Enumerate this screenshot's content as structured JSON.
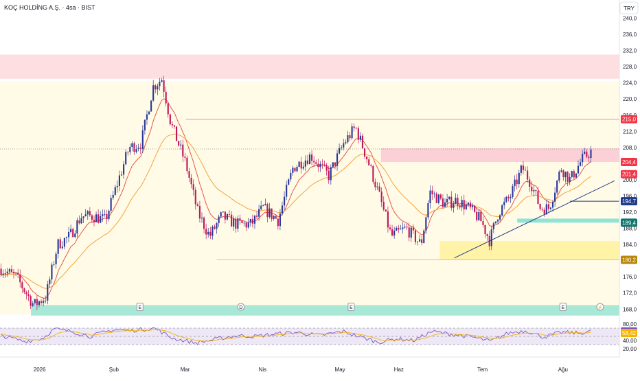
{
  "header": {
    "title": "KOÇ HOLDİNG A.Ş. · 4sa · BIST",
    "currency": "TRY"
  },
  "chart_data": {
    "type": "candlestick",
    "ylim": [
      166.0,
      242.0
    ],
    "y_ticks": [
      240,
      236,
      232,
      228,
      224,
      220,
      216,
      212,
      208,
      200,
      196,
      192,
      188,
      184,
      176,
      172,
      168
    ],
    "y_tick_labels": [
      "240,0",
      "236,0",
      "232,0",
      "228,0",
      "224,0",
      "220,0",
      "216,0",
      "212,0",
      "208,0",
      "200,0",
      "196,0",
      "192,0",
      "188,0",
      "184,0",
      "176,0",
      "172,0",
      "168,0"
    ],
    "x_ticks": [
      {
        "label": "2026",
        "t": 0.075
      },
      {
        "label": "Şub",
        "t": 0.195
      },
      {
        "label": "Mar",
        "t": 0.31
      },
      {
        "label": "Nis",
        "t": 0.435
      },
      {
        "label": "May",
        "t": 0.56
      },
      {
        "label": "Haz",
        "t": 0.655
      },
      {
        "label": "Tem",
        "t": 0.79
      },
      {
        "label": "Ağu",
        "t": 0.92
      }
    ],
    "price_labels": [
      {
        "value": "215,0",
        "price": 215.0,
        "color": "#f23645"
      },
      {
        "value": "204,4",
        "price": 204.4,
        "color": "#f23645"
      },
      {
        "value": "201,4",
        "price": 201.4,
        "color": "#f23645"
      },
      {
        "value": "194,7",
        "price": 194.7,
        "color": "#1e3a8a"
      },
      {
        "value": "189,4",
        "price": 189.4,
        "color": "#0f766e"
      },
      {
        "value": "180,2",
        "price": 180.2,
        "color": "#b8860b"
      }
    ],
    "zones": [
      {
        "kind": "resistance",
        "from": 225.0,
        "to": 231.0,
        "color": "#fddfe2",
        "t0": 0.0
      },
      {
        "kind": "resistance",
        "from": 204.4,
        "to": 207.8,
        "color": "#fbd0d6",
        "t0": 0.615
      },
      {
        "kind": "support",
        "from": 189.4,
        "to": 190.4,
        "color": "#90e4d6",
        "t0": 0.835
      },
      {
        "kind": "support",
        "from": 180.2,
        "to": 184.8,
        "color": "#fff3a8",
        "t0": 0.71
      },
      {
        "kind": "support",
        "from": 166.4,
        "to": 169.0,
        "color": "#a8e8d6",
        "t0": 0.05
      }
    ],
    "levels": [
      {
        "price": 215.0,
        "t0": 0.3,
        "color": "#f28b96"
      },
      {
        "price": 194.7,
        "t0": 0.92,
        "color": "#1e3a8a"
      },
      {
        "price": 180.2,
        "t0": 0.35,
        "color": "#e5c46a"
      }
    ],
    "trendlines": [
      {
        "t0": 0.8,
        "p0": 181.0,
        "t1": 1.02,
        "p1": 201.8,
        "color": "#1e3a8a"
      }
    ],
    "event_markers": [
      {
        "t": 0.247,
        "label": "E",
        "shape": "square"
      },
      {
        "t": 0.41,
        "label": "D",
        "shape": "circle"
      },
      {
        "t": 0.588,
        "label": "E",
        "shape": "square"
      },
      {
        "t": 0.93,
        "label": "E",
        "shape": "square"
      },
      {
        "t": 0.99,
        "label": "⚡",
        "shape": "circle"
      }
    ],
    "keypoints": [
      {
        "t": 0.0,
        "p": 178
      },
      {
        "t": 0.025,
        "p": 176
      },
      {
        "t": 0.055,
        "p": 169
      },
      {
        "t": 0.075,
        "p": 171
      },
      {
        "t": 0.095,
        "p": 184
      },
      {
        "t": 0.115,
        "p": 186
      },
      {
        "t": 0.135,
        "p": 191
      },
      {
        "t": 0.155,
        "p": 191
      },
      {
        "t": 0.175,
        "p": 190
      },
      {
        "t": 0.195,
        "p": 199
      },
      {
        "t": 0.215,
        "p": 208
      },
      {
        "t": 0.235,
        "p": 209
      },
      {
        "t": 0.255,
        "p": 223
      },
      {
        "t": 0.27,
        "p": 225
      },
      {
        "t": 0.285,
        "p": 214
      },
      {
        "t": 0.31,
        "p": 204
      },
      {
        "t": 0.33,
        "p": 192
      },
      {
        "t": 0.35,
        "p": 186
      },
      {
        "t": 0.37,
        "p": 191
      },
      {
        "t": 0.395,
        "p": 189
      },
      {
        "t": 0.42,
        "p": 189
      },
      {
        "t": 0.44,
        "p": 193
      },
      {
        "t": 0.465,
        "p": 190
      },
      {
        "t": 0.49,
        "p": 203
      },
      {
        "t": 0.52,
        "p": 206
      },
      {
        "t": 0.55,
        "p": 201
      },
      {
        "t": 0.575,
        "p": 209
      },
      {
        "t": 0.595,
        "p": 213
      },
      {
        "t": 0.615,
        "p": 205
      },
      {
        "t": 0.635,
        "p": 196
      },
      {
        "t": 0.655,
        "p": 186
      },
      {
        "t": 0.68,
        "p": 188
      },
      {
        "t": 0.705,
        "p": 184
      },
      {
        "t": 0.72,
        "p": 197
      },
      {
        "t": 0.745,
        "p": 194
      },
      {
        "t": 0.765,
        "p": 195
      },
      {
        "t": 0.785,
        "p": 193
      },
      {
        "t": 0.805,
        "p": 190
      },
      {
        "t": 0.82,
        "p": 185
      },
      {
        "t": 0.835,
        "p": 192
      },
      {
        "t": 0.855,
        "p": 196
      },
      {
        "t": 0.875,
        "p": 203
      },
      {
        "t": 0.89,
        "p": 199
      },
      {
        "t": 0.905,
        "p": 193
      },
      {
        "t": 0.92,
        "p": 193
      },
      {
        "t": 0.94,
        "p": 203
      },
      {
        "t": 0.955,
        "p": 200
      },
      {
        "t": 0.975,
        "p": 205
      },
      {
        "t": 0.99,
        "p": 207
      }
    ],
    "rsi": {
      "ylim": [
        0,
        100
      ],
      "y_ticks": [
        80,
        60,
        40,
        20
      ],
      "y_tick_labels": [
        "80,00",
        "60,00",
        "40,00",
        "20,00"
      ],
      "band": [
        30,
        70
      ],
      "values": [
        {
          "value": "62,05",
          "level": 62.05,
          "color": "#7e57c2"
        },
        {
          "value": "58,42",
          "level": 58.42,
          "color": "#f4b400"
        }
      ],
      "keypoints": [
        {
          "t": 0.0,
          "v": 52
        },
        {
          "t": 0.04,
          "v": 38
        },
        {
          "t": 0.07,
          "v": 45
        },
        {
          "t": 0.09,
          "v": 68
        },
        {
          "t": 0.12,
          "v": 62
        },
        {
          "t": 0.15,
          "v": 50
        },
        {
          "t": 0.19,
          "v": 66
        },
        {
          "t": 0.22,
          "v": 64
        },
        {
          "t": 0.26,
          "v": 70
        },
        {
          "t": 0.29,
          "v": 46
        },
        {
          "t": 0.33,
          "v": 34
        },
        {
          "t": 0.36,
          "v": 42
        },
        {
          "t": 0.4,
          "v": 52
        },
        {
          "t": 0.43,
          "v": 50
        },
        {
          "t": 0.46,
          "v": 55
        },
        {
          "t": 0.5,
          "v": 60
        },
        {
          "t": 0.54,
          "v": 52
        },
        {
          "t": 0.58,
          "v": 62
        },
        {
          "t": 0.61,
          "v": 48
        },
        {
          "t": 0.64,
          "v": 36
        },
        {
          "t": 0.67,
          "v": 44
        },
        {
          "t": 0.7,
          "v": 40
        },
        {
          "t": 0.73,
          "v": 62
        },
        {
          "t": 0.76,
          "v": 56
        },
        {
          "t": 0.8,
          "v": 48
        },
        {
          "t": 0.83,
          "v": 38
        },
        {
          "t": 0.86,
          "v": 58
        },
        {
          "t": 0.89,
          "v": 64
        },
        {
          "t": 0.92,
          "v": 48
        },
        {
          "t": 0.95,
          "v": 60
        },
        {
          "t": 0.98,
          "v": 58
        },
        {
          "t": 1.0,
          "v": 62
        }
      ]
    }
  }
}
